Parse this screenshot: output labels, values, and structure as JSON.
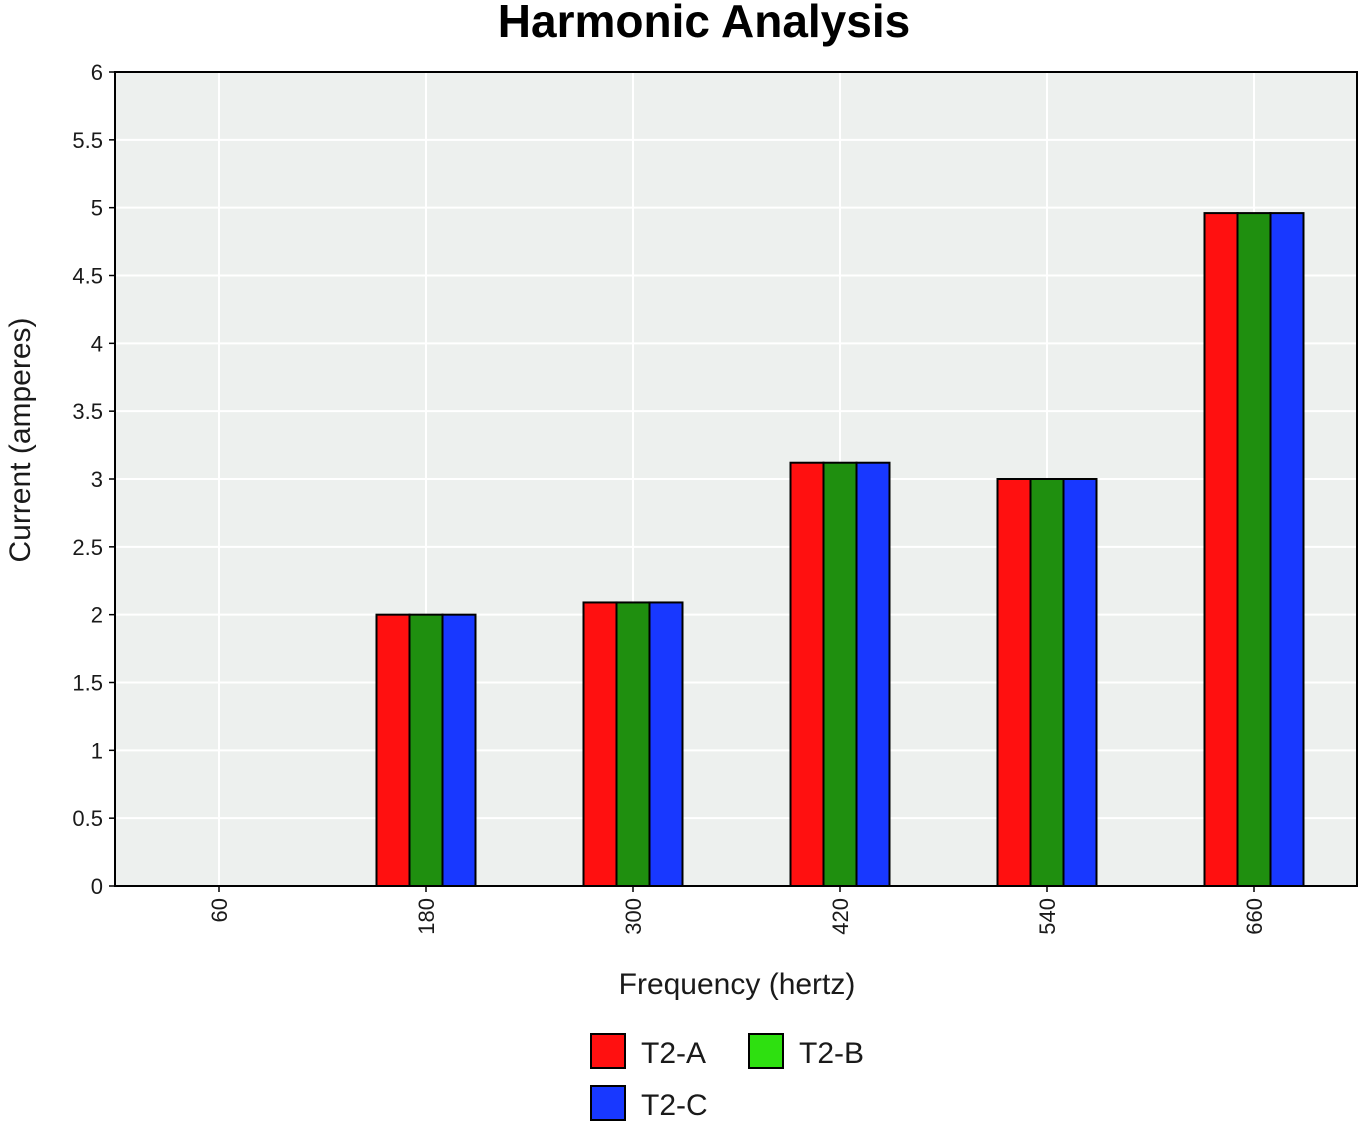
{
  "chart_data": {
    "type": "bar",
    "title": "Harmonic Analysis",
    "xlabel": "Frequency (hertz)",
    "ylabel": "Current (amperes)",
    "categories": [
      "60",
      "180",
      "300",
      "420",
      "540",
      "660"
    ],
    "ylim": [
      0,
      6
    ],
    "yticks": [
      "0",
      "0.5",
      "1",
      "1.5",
      "2",
      "2.5",
      "3",
      "3.5",
      "4",
      "4.5",
      "5",
      "5.5",
      "6"
    ],
    "grid": true,
    "legend_position": "bottom",
    "background": "#edf0ee",
    "series": [
      {
        "name": "T2-A",
        "color": "#ff1010",
        "values": [
          0,
          2.0,
          2.09,
          3.12,
          3.0,
          4.96
        ]
      },
      {
        "name": "T2-B",
        "color": "#1f8f0f",
        "legend_color": "#2ee010",
        "values": [
          0,
          2.0,
          2.09,
          3.12,
          3.0,
          4.96
        ]
      },
      {
        "name": "T2-C",
        "color": "#1838ff",
        "values": [
          0,
          2.0,
          2.09,
          3.12,
          3.0,
          4.96
        ]
      }
    ]
  }
}
